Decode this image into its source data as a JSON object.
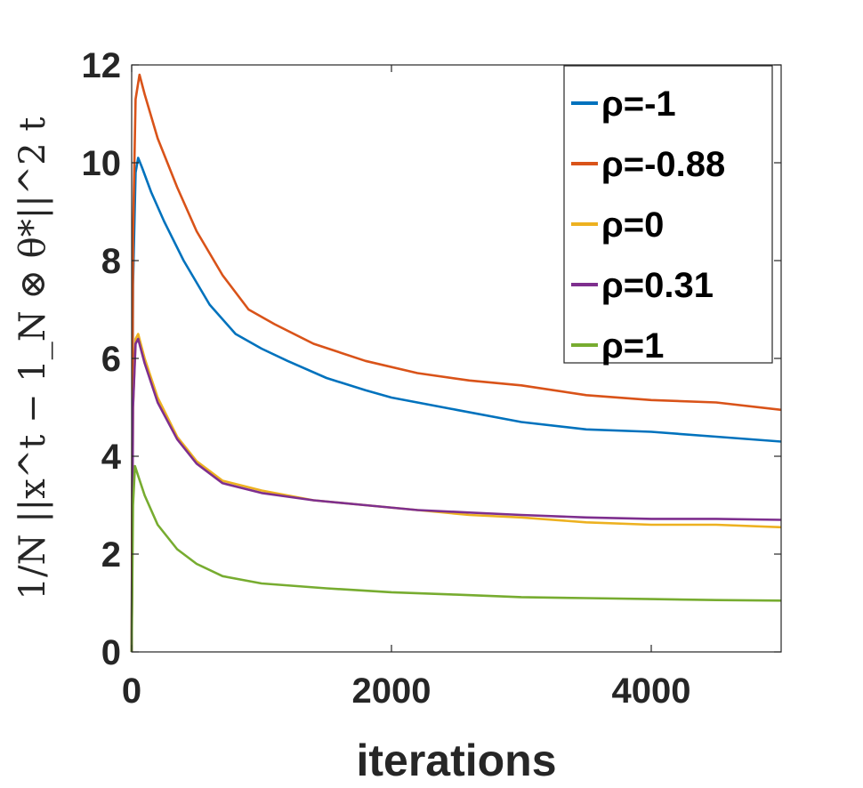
{
  "chart_data": {
    "type": "line",
    "xlabel": "iterations",
    "ylabel": "1/N ||x^t − 1_N ⊗ θ*||^2 t",
    "xlim": [
      0,
      5000
    ],
    "ylim": [
      0,
      12
    ],
    "x_ticks": [
      "0",
      "2000",
      "4000"
    ],
    "y_ticks": [
      "0",
      "2",
      "4",
      "6",
      "8",
      "10",
      "12"
    ],
    "legend_position": "top-right",
    "series": [
      {
        "name": "ρ=-1",
        "color": "#0072BD",
        "points": [
          [
            0,
            0
          ],
          [
            10,
            7.5
          ],
          [
            30,
            9.8
          ],
          [
            50,
            10.1
          ],
          [
            80,
            9.9
          ],
          [
            150,
            9.4
          ],
          [
            250,
            8.8
          ],
          [
            400,
            8.0
          ],
          [
            600,
            7.1
          ],
          [
            800,
            6.5
          ],
          [
            1000,
            6.2
          ],
          [
            1200,
            5.95
          ],
          [
            1500,
            5.6
          ],
          [
            1800,
            5.35
          ],
          [
            2000,
            5.2
          ],
          [
            2500,
            4.95
          ],
          [
            3000,
            4.7
          ],
          [
            3500,
            4.55
          ],
          [
            4000,
            4.5
          ],
          [
            4500,
            4.4
          ],
          [
            5000,
            4.3
          ]
        ]
      },
      {
        "name": "ρ=-0.88",
        "color": "#D95319",
        "points": [
          [
            0,
            0
          ],
          [
            10,
            8.5
          ],
          [
            30,
            11.3
          ],
          [
            60,
            11.8
          ],
          [
            100,
            11.4
          ],
          [
            200,
            10.5
          ],
          [
            350,
            9.5
          ],
          [
            500,
            8.6
          ],
          [
            700,
            7.7
          ],
          [
            900,
            7.0
          ],
          [
            1100,
            6.7
          ],
          [
            1400,
            6.3
          ],
          [
            1800,
            5.95
          ],
          [
            2200,
            5.7
          ],
          [
            2600,
            5.55
          ],
          [
            3000,
            5.45
          ],
          [
            3500,
            5.25
          ],
          [
            4000,
            5.15
          ],
          [
            4500,
            5.1
          ],
          [
            5000,
            4.95
          ]
        ]
      },
      {
        "name": "ρ=0",
        "color": "#EDB120",
        "points": [
          [
            0,
            0
          ],
          [
            10,
            5.0
          ],
          [
            30,
            6.4
          ],
          [
            50,
            6.5
          ],
          [
            100,
            6.0
          ],
          [
            200,
            5.2
          ],
          [
            350,
            4.4
          ],
          [
            500,
            3.9
          ],
          [
            700,
            3.5
          ],
          [
            1000,
            3.3
          ],
          [
            1400,
            3.1
          ],
          [
            1800,
            3.0
          ],
          [
            2200,
            2.9
          ],
          [
            2600,
            2.8
          ],
          [
            3000,
            2.75
          ],
          [
            3500,
            2.65
          ],
          [
            4000,
            2.6
          ],
          [
            4500,
            2.6
          ],
          [
            5000,
            2.55
          ]
        ]
      },
      {
        "name": "ρ=0.31",
        "color": "#7E2F8E",
        "points": [
          [
            0,
            0
          ],
          [
            10,
            5.0
          ],
          [
            30,
            6.3
          ],
          [
            50,
            6.4
          ],
          [
            100,
            5.9
          ],
          [
            200,
            5.1
          ],
          [
            350,
            4.35
          ],
          [
            500,
            3.85
          ],
          [
            700,
            3.45
          ],
          [
            1000,
            3.25
          ],
          [
            1400,
            3.1
          ],
          [
            1800,
            3.0
          ],
          [
            2200,
            2.9
          ],
          [
            2600,
            2.85
          ],
          [
            3000,
            2.8
          ],
          [
            3500,
            2.75
          ],
          [
            4000,
            2.72
          ],
          [
            4500,
            2.72
          ],
          [
            5000,
            2.7
          ]
        ]
      },
      {
        "name": "ρ=1",
        "color": "#77AC30",
        "points": [
          [
            0,
            0
          ],
          [
            10,
            3.0
          ],
          [
            25,
            3.8
          ],
          [
            50,
            3.6
          ],
          [
            100,
            3.2
          ],
          [
            200,
            2.6
          ],
          [
            350,
            2.1
          ],
          [
            500,
            1.8
          ],
          [
            700,
            1.55
          ],
          [
            1000,
            1.4
          ],
          [
            1500,
            1.3
          ],
          [
            2000,
            1.22
          ],
          [
            2500,
            1.17
          ],
          [
            3000,
            1.12
          ],
          [
            3500,
            1.1
          ],
          [
            4000,
            1.08
          ],
          [
            4500,
            1.06
          ],
          [
            5000,
            1.05
          ]
        ]
      }
    ]
  }
}
